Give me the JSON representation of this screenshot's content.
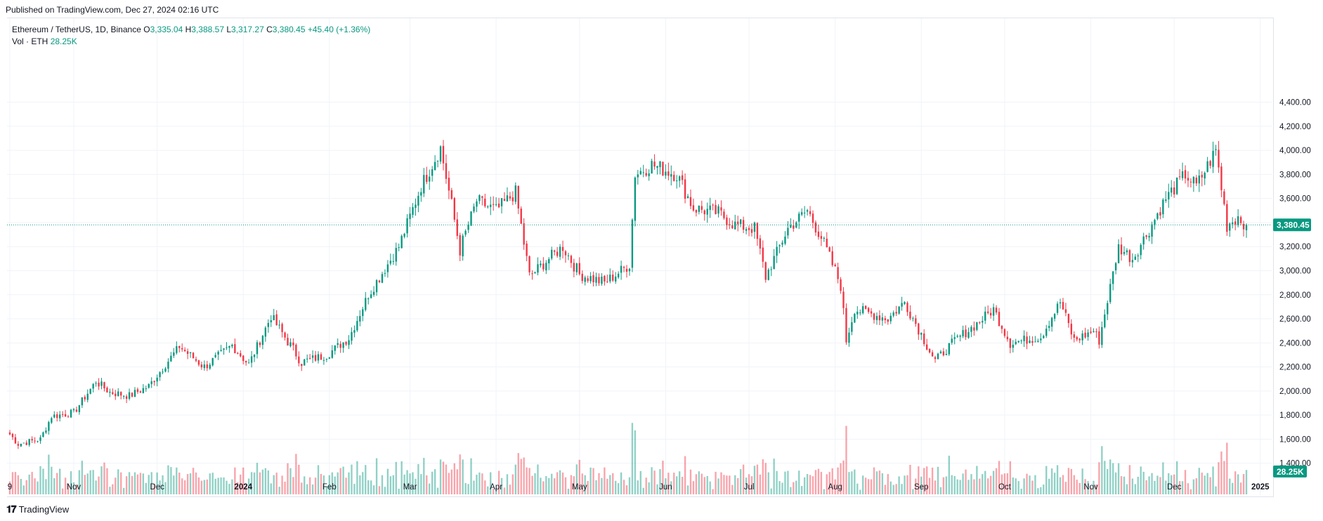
{
  "header": {
    "published": "Published on TradingView.com, Dec 27, 2024 02:16 UTC"
  },
  "legend": {
    "symbol": "Ethereum / TetherUS, 1D, Binance",
    "open_label": "O",
    "open": "3,335.04",
    "high_label": "H",
    "high": "3,388.57",
    "low_label": "L",
    "low": "3,317.27",
    "close_label": "C",
    "close": "3,380.45",
    "change": "+45.40 (+1.36%)",
    "vol_label": "Vol · ETH",
    "vol": "28.25K"
  },
  "footer": {
    "brand": "TradingView"
  },
  "colors": {
    "up": "#089981",
    "down": "#f23645",
    "grid": "#f0f3fa",
    "axis_text": "#131722"
  },
  "chart_data": {
    "type": "candlestick",
    "title": "",
    "y_axis": {
      "side": "right",
      "min": 1200,
      "max": 4400,
      "ticks": [
        "4,400.00",
        "4,200.00",
        "4,000.00",
        "3,800.00",
        "3,600.00",
        "3,400.00",
        "3,200.00",
        "3,000.00",
        "2,800.00",
        "2,600.00",
        "2,400.00",
        "2,200.00",
        "2,000.00",
        "1,800.00",
        "1,600.00",
        "1,400.00"
      ],
      "tick_values": [
        4400,
        4200,
        4000,
        3800,
        3600,
        3400,
        3200,
        3000,
        2800,
        2600,
        2400,
        2200,
        2000,
        1800,
        1600,
        1400
      ]
    },
    "x_axis": {
      "labels": [
        "9",
        "Nov",
        "Dec",
        "2024",
        "Feb",
        "Mar",
        "Apr",
        "May",
        "Jun",
        "Jul",
        "Aug",
        "Sep",
        "Oct",
        "Nov",
        "Dec",
        "2025"
      ],
      "bold": [
        "2024",
        "2025"
      ],
      "first_date": "2023-10-09",
      "last_date": "2024-12-27"
    },
    "last_price_label": "3,380.45",
    "volume_label": "28.25K",
    "price_anchors": [
      [
        "2023-10-09",
        1640
      ],
      [
        "2023-10-12",
        1560
      ],
      [
        "2023-10-20",
        1600
      ],
      [
        "2023-10-24",
        1790
      ],
      [
        "2023-11-01",
        1820
      ],
      [
        "2023-11-09",
        2080
      ],
      [
        "2023-11-14",
        1990
      ],
      [
        "2023-11-21",
        1960
      ],
      [
        "2023-11-28",
        2040
      ],
      [
        "2023-12-09",
        2370
      ],
      [
        "2023-12-18",
        2200
      ],
      [
        "2023-12-28",
        2380
      ],
      [
        "2024-01-03",
        2220
      ],
      [
        "2024-01-11",
        2620
      ],
      [
        "2024-01-22",
        2240
      ],
      [
        "2024-01-31",
        2300
      ],
      [
        "2024-02-08",
        2440
      ],
      [
        "2024-02-15",
        2800
      ],
      [
        "2024-02-26",
        3200
      ],
      [
        "2024-03-05",
        3700
      ],
      [
        "2024-03-12",
        4020
      ],
      [
        "2024-03-19",
        3180
      ],
      [
        "2024-03-25",
        3580
      ],
      [
        "2024-04-01",
        3500
      ],
      [
        "2024-04-08",
        3650
      ],
      [
        "2024-04-13",
        2950
      ],
      [
        "2024-04-20",
        3100
      ],
      [
        "2024-04-25",
        3200
      ],
      [
        "2024-05-01",
        2970
      ],
      [
        "2024-05-10",
        2900
      ],
      [
        "2024-05-19",
        3050
      ],
      [
        "2024-05-21",
        3800
      ],
      [
        "2024-05-27",
        3880
      ],
      [
        "2024-06-05",
        3800
      ],
      [
        "2024-06-11",
        3520
      ],
      [
        "2024-06-20",
        3480
      ],
      [
        "2024-06-26",
        3380
      ],
      [
        "2024-07-03",
        3350
      ],
      [
        "2024-07-07",
        2950
      ],
      [
        "2024-07-15",
        3350
      ],
      [
        "2024-07-22",
        3500
      ],
      [
        "2024-07-27",
        3280
      ],
      [
        "2024-08-03",
        2880
      ],
      [
        "2024-08-05",
        2420
      ],
      [
        "2024-08-08",
        2680
      ],
      [
        "2024-08-20",
        2600
      ],
      [
        "2024-08-26",
        2740
      ],
      [
        "2024-09-06",
        2250
      ],
      [
        "2024-09-13",
        2420
      ],
      [
        "2024-09-20",
        2540
      ],
      [
        "2024-09-27",
        2680
      ],
      [
        "2024-10-03",
        2400
      ],
      [
        "2024-10-14",
        2450
      ],
      [
        "2024-10-21",
        2740
      ],
      [
        "2024-10-26",
        2420
      ],
      [
        "2024-11-02",
        2500
      ],
      [
        "2024-11-04",
        2420
      ],
      [
        "2024-11-11",
        3200
      ],
      [
        "2024-11-16",
        3100
      ],
      [
        "2024-11-21",
        3300
      ],
      [
        "2024-11-28",
        3600
      ],
      [
        "2024-12-05",
        3800
      ],
      [
        "2024-12-09",
        3700
      ],
      [
        "2024-12-16",
        4000
      ],
      [
        "2024-12-20",
        3380
      ],
      [
        "2024-12-24",
        3450
      ],
      [
        "2024-12-27",
        3380
      ]
    ]
  }
}
